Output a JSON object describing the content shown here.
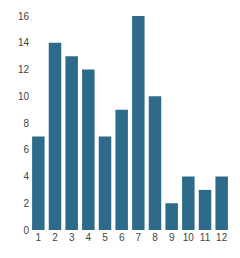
{
  "chart_data": {
    "type": "bar",
    "categories": [
      "1",
      "2",
      "3",
      "4",
      "5",
      "6",
      "7",
      "8",
      "9",
      "10",
      "11",
      "12"
    ],
    "values": [
      7,
      14,
      13,
      12,
      7,
      9,
      16,
      10,
      2,
      4,
      3,
      4
    ],
    "color": "#2e6b8a",
    "ylim": [
      0,
      16
    ],
    "yticks": [
      0,
      2,
      4,
      6,
      8,
      10,
      12,
      14,
      16
    ],
    "grid": false
  }
}
